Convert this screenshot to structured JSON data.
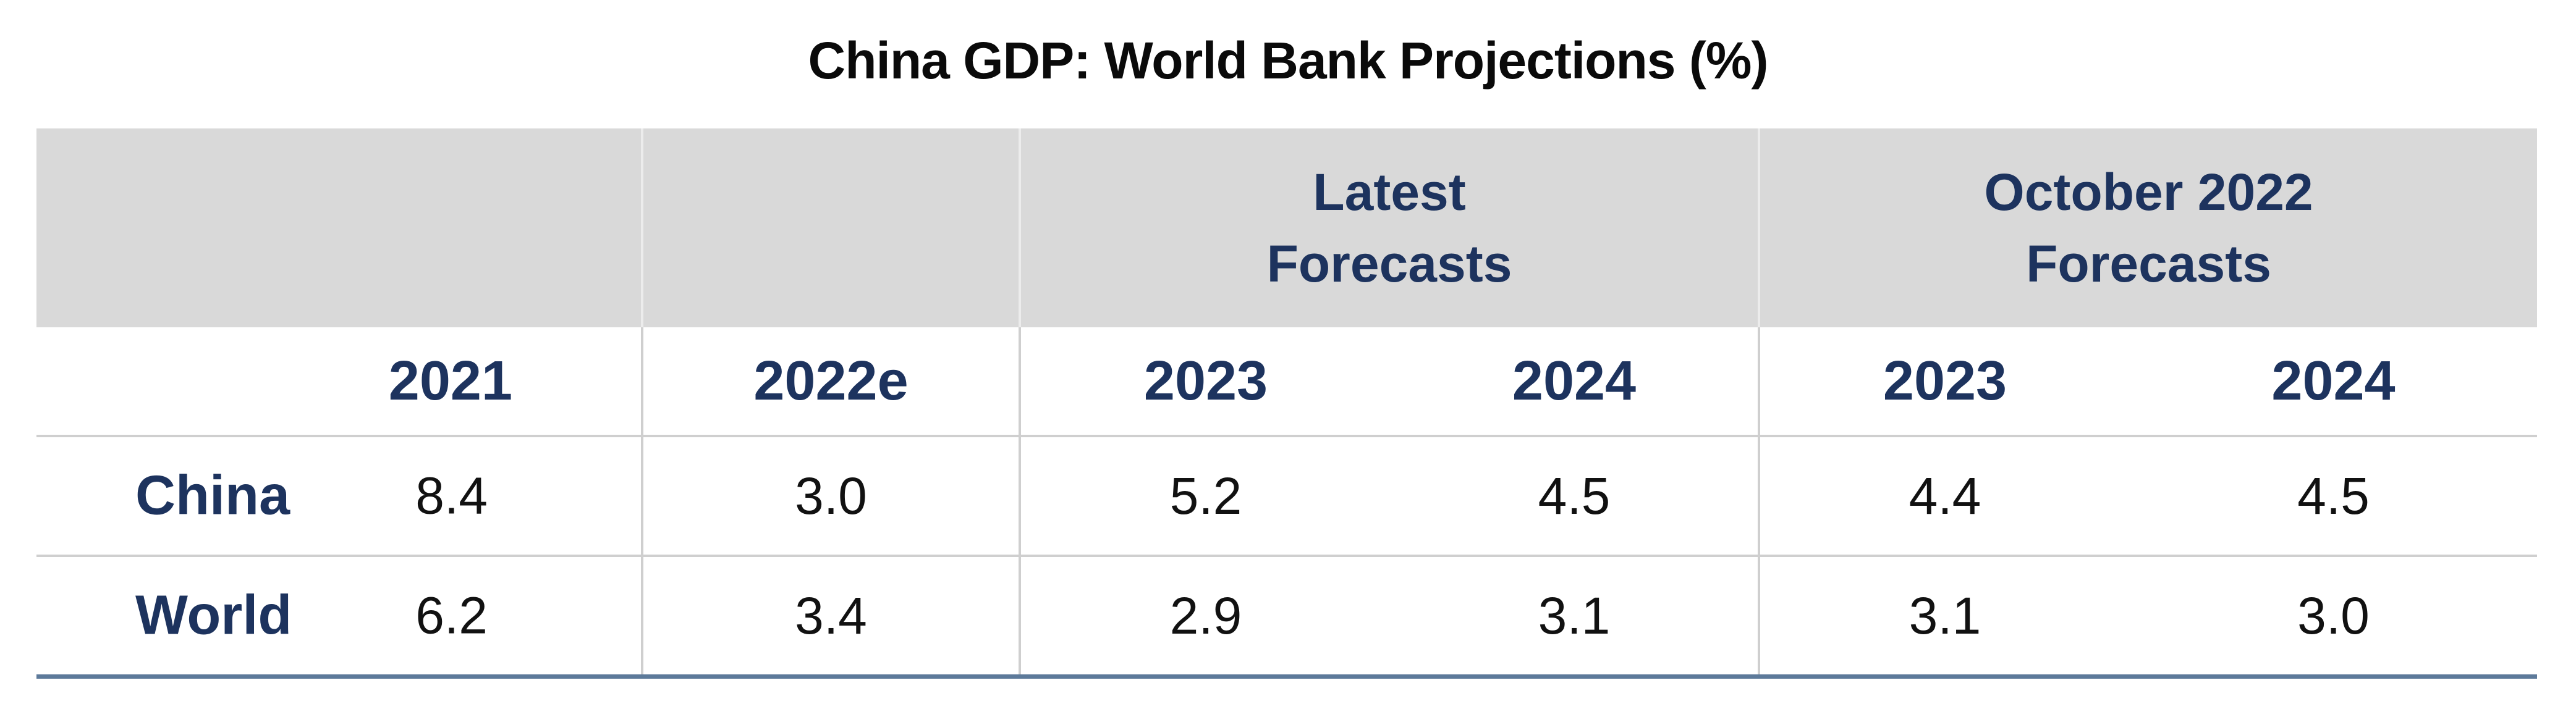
{
  "chart_data": {
    "type": "table",
    "title": "China GDP: World Bank Projections (%)",
    "group_headers": [
      {
        "line1": "Latest",
        "line2": "Forecasts"
      },
      {
        "line1": "October 2022",
        "line2": "Forecasts"
      }
    ],
    "columns": [
      "2021",
      "2022e",
      "2023",
      "2024",
      "2023",
      "2024"
    ],
    "rows": [
      {
        "label": "China",
        "values": [
          "8.4",
          "3.0",
          "5.2",
          "4.5",
          "4.4",
          "4.5"
        ]
      },
      {
        "label": "World",
        "values": [
          "6.2",
          "3.4",
          "2.9",
          "3.1",
          "3.1",
          "3.0"
        ]
      }
    ]
  },
  "colors": {
    "header_fill": "#d9d9d9",
    "header_text": "#1d335e",
    "rule": "#cfcfcf",
    "bottom_rule": "#5d7a9a"
  }
}
